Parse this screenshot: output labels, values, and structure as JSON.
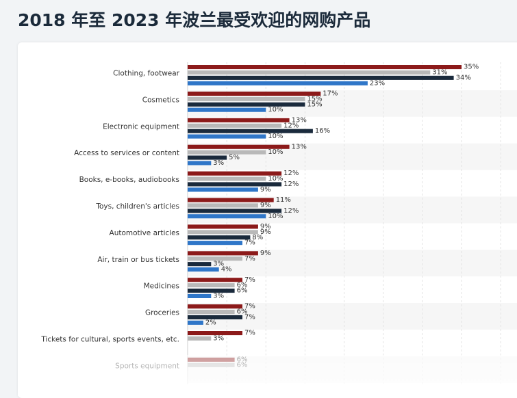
{
  "page": {
    "title": "2018 年至 2023 年波兰最受欢迎的网购产品"
  },
  "chart_data": {
    "type": "bar",
    "orientation": "horizontal",
    "title": "2018 年至 2023 年波兰最受欢迎的网购产品",
    "xlabel": "",
    "ylabel": "",
    "xlim": [
      0,
      40
    ],
    "grid": true,
    "value_suffix": "%",
    "categories": [
      "Clothing, footwear",
      "Cosmetics",
      "Electronic equipment",
      "Access to services or content",
      "Books, e-books, audiobooks",
      "Toys, children's articles",
      "Automotive articles",
      "Air, train or bus tickets",
      "Medicines",
      "Groceries",
      "Tickets for cultural, sports events, etc.",
      "Sports equipment"
    ],
    "series": [
      {
        "color": "#8c1a1a",
        "values": [
          35,
          17,
          13,
          13,
          12,
          11,
          9,
          9,
          7,
          7,
          7,
          6
        ]
      },
      {
        "color": "#b9b9b9",
        "values": [
          31,
          15,
          12,
          10,
          10,
          9,
          9,
          7,
          6,
          6,
          3,
          6
        ]
      },
      {
        "color": "#1a2a3c",
        "values": [
          34,
          15,
          16,
          5,
          12,
          12,
          8,
          3,
          6,
          7,
          null,
          null
        ]
      },
      {
        "color": "#2f76c8",
        "values": [
          23,
          10,
          10,
          3,
          9,
          10,
          7,
          4,
          3,
          2,
          null,
          null
        ]
      }
    ]
  }
}
